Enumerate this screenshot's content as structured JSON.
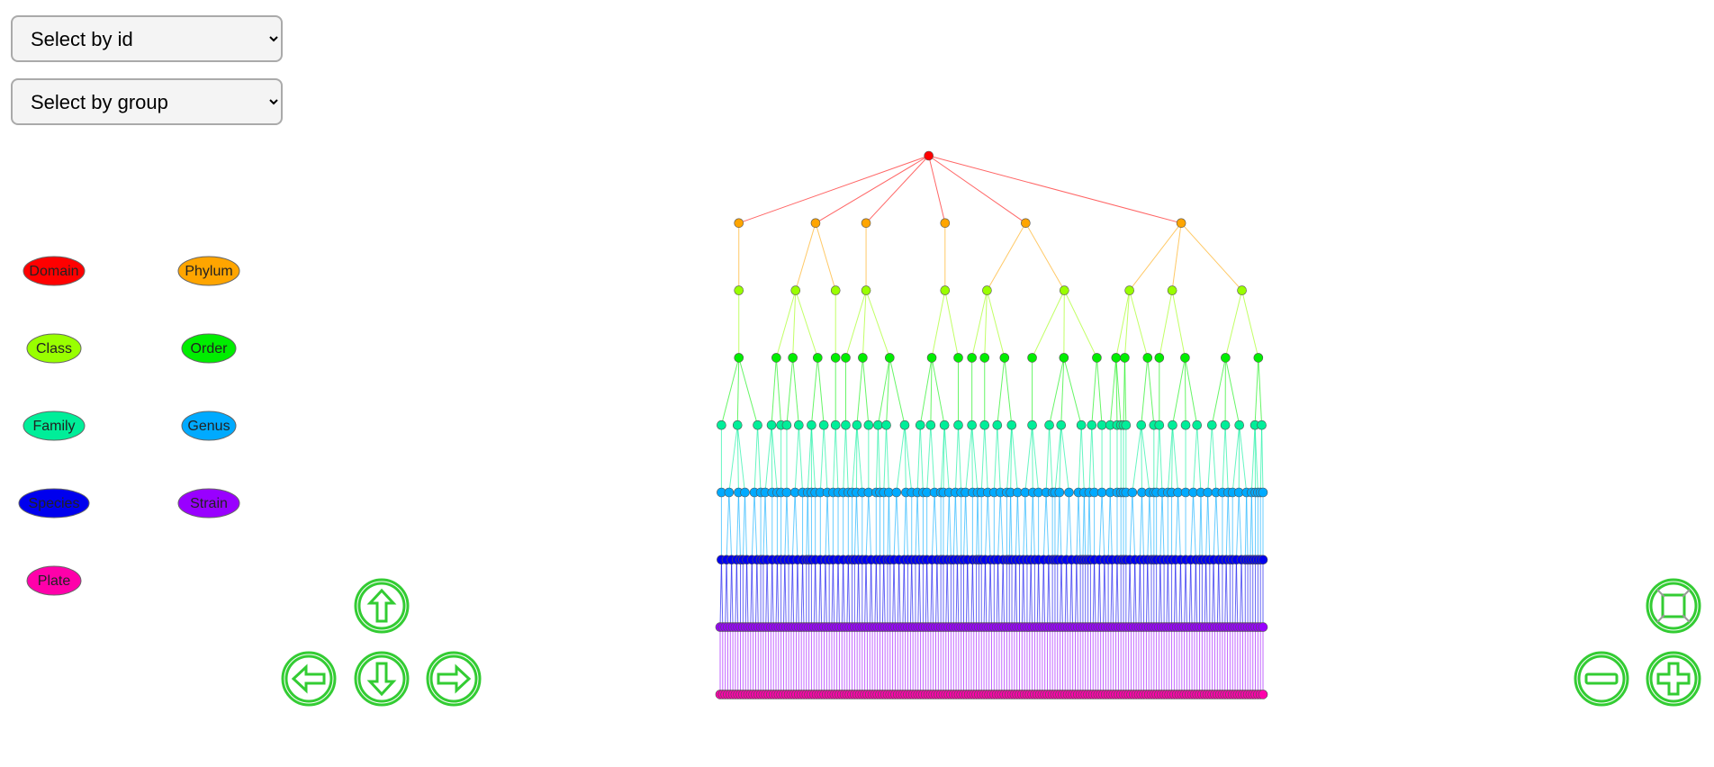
{
  "controls": {
    "select_id": "Select by id",
    "select_group": "Select by group"
  },
  "legend": {
    "items": [
      {
        "label": "Domain",
        "color": "#ff0000"
      },
      {
        "label": "Phylum",
        "color": "#ffa500"
      },
      {
        "label": "Class",
        "color": "#99ff00"
      },
      {
        "label": "Order",
        "color": "#00ee00"
      },
      {
        "label": "Family",
        "color": "#00ee99"
      },
      {
        "label": "Genus",
        "color": "#00aaff"
      },
      {
        "label": "Species",
        "color": "#0000ee"
      },
      {
        "label": "Strain",
        "color": "#9900ff"
      },
      {
        "label": "Plate",
        "color": "#ff00aa"
      }
    ]
  }
}
